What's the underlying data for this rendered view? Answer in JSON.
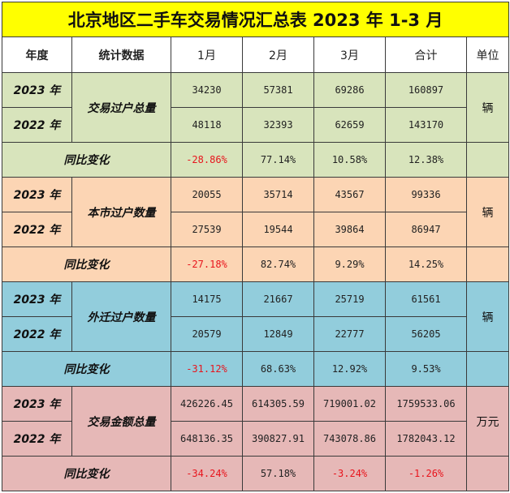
{
  "title": "北京地区二手车交易情况汇总表 2023 年 1-3 月",
  "headers": [
    "年度",
    "统计数据",
    "1月",
    "2月",
    "3月",
    "合计",
    "单位"
  ],
  "groups": [
    {
      "metric": "交易过户总量",
      "unit": "辆",
      "rows": [
        {
          "year": "2023 年",
          "values": [
            "34230",
            "57381",
            "69286",
            "160897"
          ]
        },
        {
          "year": "2022 年",
          "values": [
            "48118",
            "32393",
            "62659",
            "143170"
          ]
        }
      ],
      "yoy_label": "同比变化",
      "yoy": [
        "-28.86%",
        "77.14%",
        "10.58%",
        "12.38%"
      ]
    },
    {
      "metric": "本市过户数量",
      "unit": "辆",
      "rows": [
        {
          "year": "2023 年",
          "values": [
            "20055",
            "35714",
            "43567",
            "99336"
          ]
        },
        {
          "year": "2022 年",
          "values": [
            "27539",
            "19544",
            "39864",
            "86947"
          ]
        }
      ],
      "yoy_label": "同比变化",
      "yoy": [
        "-27.18%",
        "82.74%",
        "9.29%",
        "14.25%"
      ]
    },
    {
      "metric": "外迁过户数量",
      "unit": "辆",
      "rows": [
        {
          "year": "2023 年",
          "values": [
            "14175",
            "21667",
            "25719",
            "61561"
          ]
        },
        {
          "year": "2022 年",
          "values": [
            "20579",
            "12849",
            "22777",
            "56205"
          ]
        }
      ],
      "yoy_label": "同比变化",
      "yoy": [
        "-31.12%",
        "68.63%",
        "12.92%",
        "9.53%"
      ]
    },
    {
      "metric": "交易金额总量",
      "unit": "万元",
      "rows": [
        {
          "year": "2023 年",
          "values": [
            "426226.45",
            "614305.59",
            "719001.02",
            "1759533.06"
          ]
        },
        {
          "year": "2022 年",
          "values": [
            "648136.35",
            "390827.91",
            "743078.86",
            "1782043.12"
          ]
        }
      ],
      "yoy_label": "同比变化",
      "yoy": [
        "-34.24%",
        "57.18%",
        "-3.24%",
        "-1.26%"
      ]
    }
  ],
  "colors": {
    "title_bg": "#ffff00",
    "group1_bg": "#d8e4bc",
    "group2_bg": "#fcd5b4",
    "group3_bg": "#92cddc",
    "group4_bg": "#e6b8b7",
    "negative": "#e8141c"
  }
}
